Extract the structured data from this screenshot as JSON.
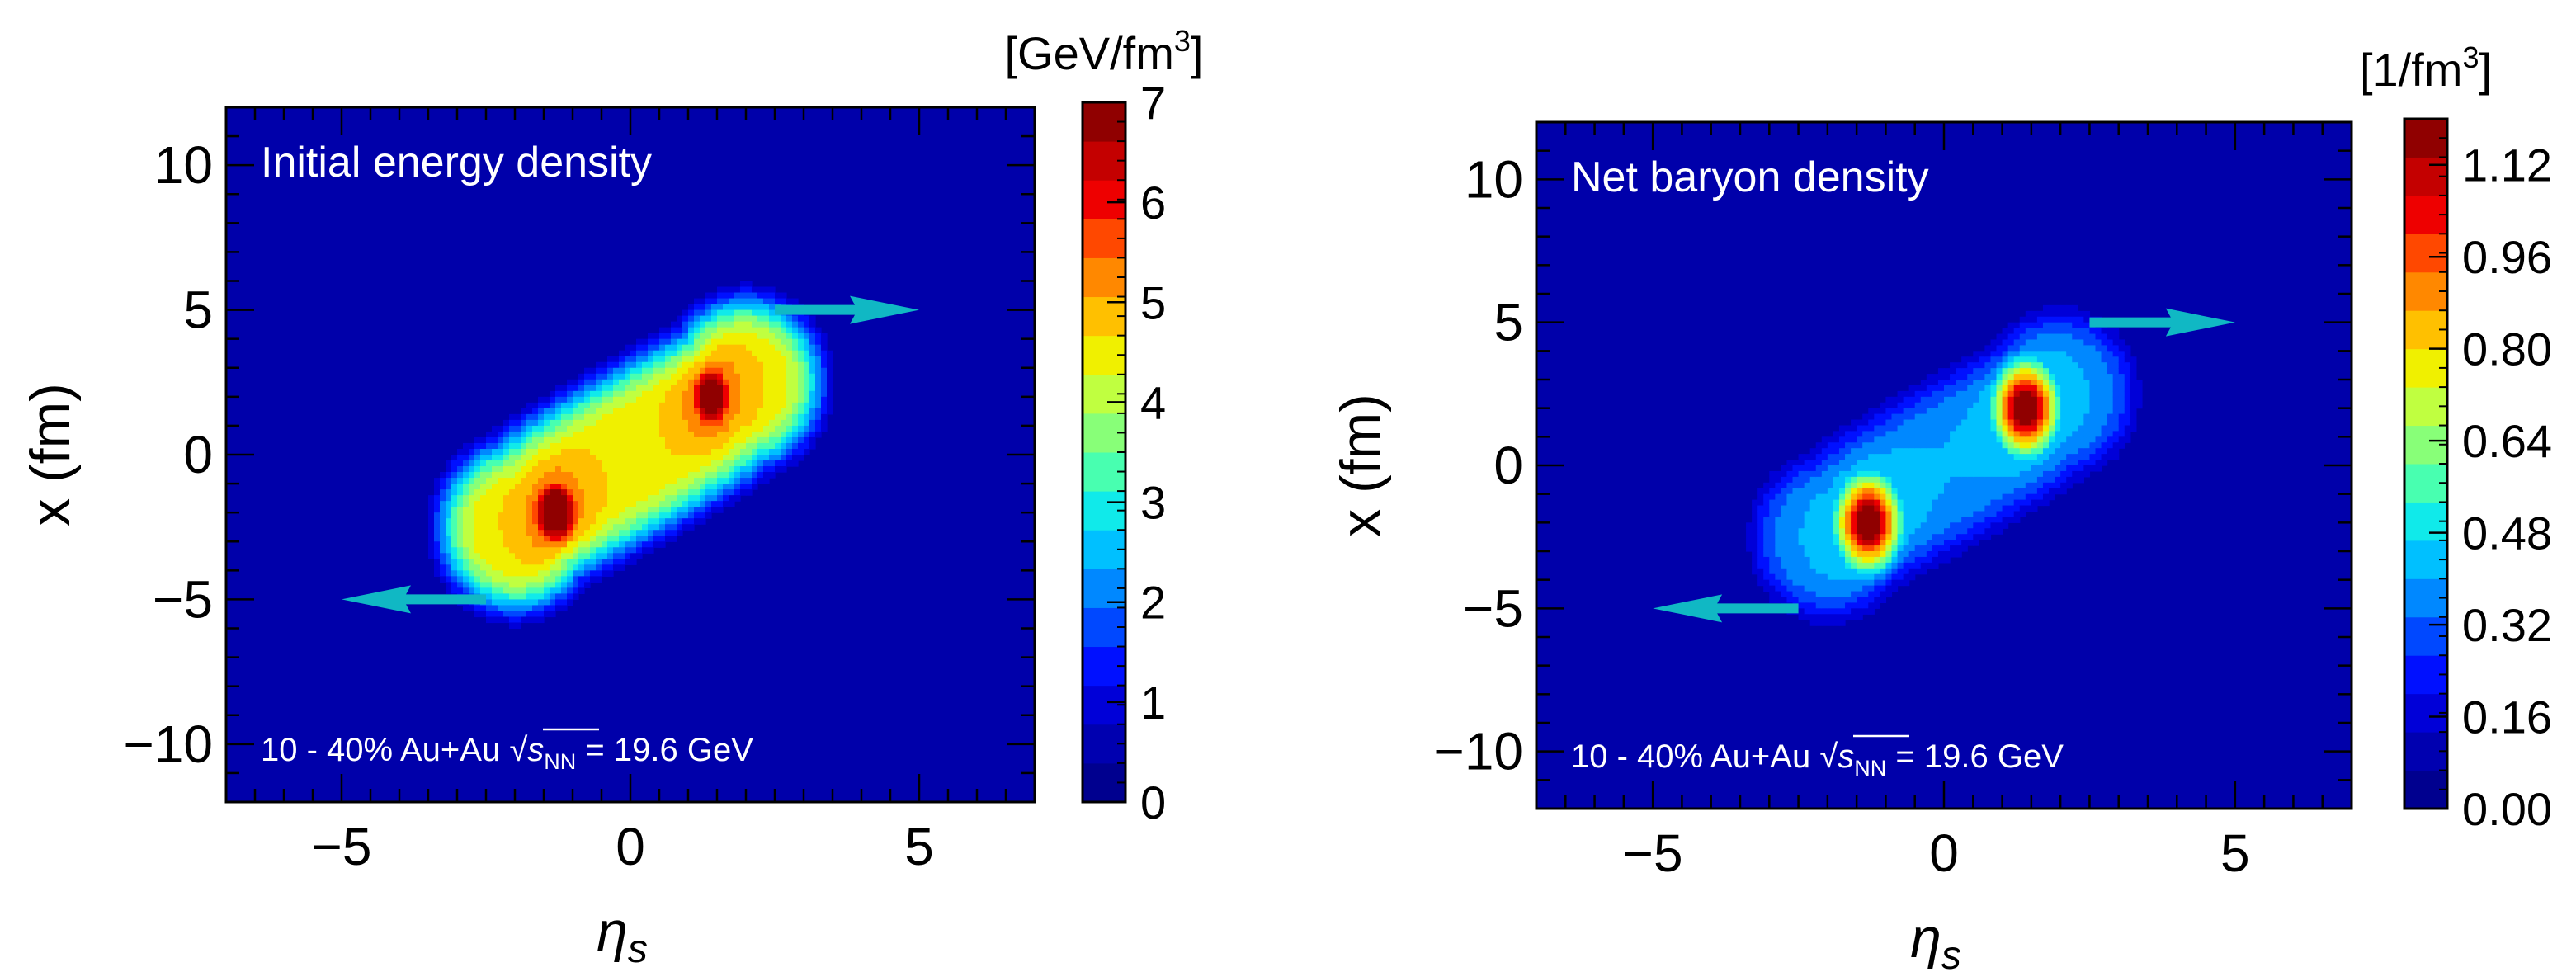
{
  "colors": {
    "background": "#0000aa",
    "arrow": "#10b8c4",
    "frame": "#000000",
    "annotation_text": "#ffffff",
    "colormap": [
      "#00008f",
      "#0000b0",
      "#0000d8",
      "#0010ff",
      "#0048ff",
      "#0088ff",
      "#00c0ff",
      "#10eaea",
      "#48ffb0",
      "#88ff78",
      "#c0ff40",
      "#f0f000",
      "#ffc000",
      "#ff8800",
      "#ff4800",
      "#ee0000",
      "#c40000",
      "#900000"
    ]
  },
  "chart_data": [
    {
      "type": "heatmap",
      "title": "Initial energy density",
      "annotation": {
        "prefix": "10 - 40% Au+Au",
        "sqrt": "√",
        "s": "s",
        "sub": "NN",
        "suffix": "= 19.6 GeV"
      },
      "xlabel": "η",
      "xlabel_sub": "s",
      "ylabel": "x (fm)",
      "xlim": [
        -7,
        7
      ],
      "ylim": [
        -12,
        12
      ],
      "xticks": [
        -5,
        0,
        5
      ],
      "xtick_labels": [
        "−5",
        "0",
        "5"
      ],
      "yticks": [
        10,
        5,
        0,
        -5,
        -10
      ],
      "ytick_labels": [
        "10",
        "5",
        "0",
        "−5",
        "−10"
      ],
      "colorbar": {
        "label_prefix": "[GeV/fm",
        "label_sup": "3",
        "label_suffix": "]",
        "range": [
          0,
          7
        ],
        "ticks": [
          0,
          1,
          2,
          3,
          4,
          5,
          6,
          7
        ],
        "tick_labels": [
          "0",
          "1",
          "2",
          "3",
          "4",
          "5",
          "6",
          "7"
        ]
      },
      "field": {
        "peaks": [
          {
            "eta": -1.3,
            "x": -2.0,
            "value": 7.0
          },
          {
            "eta": 1.4,
            "x": 2.0,
            "value": 6.6
          }
        ],
        "central_value": 4.6
      },
      "arrows": [
        {
          "from_eta": 2.5,
          "to_eta": 5.0,
          "x": 5.0,
          "direction": "right"
        },
        {
          "from_eta": -2.5,
          "to_eta": -5.0,
          "x": -5.0,
          "direction": "left"
        }
      ]
    },
    {
      "type": "heatmap",
      "title": "Net baryon density",
      "annotation": {
        "prefix": "10 - 40% Au+Au",
        "sqrt": "√",
        "s": "s",
        "sub": "NN",
        "suffix": "= 19.6 GeV"
      },
      "xlabel": "η",
      "xlabel_sub": "s",
      "ylabel": "x (fm)",
      "xlim": [
        -7,
        7
      ],
      "ylim": [
        -12,
        12
      ],
      "xticks": [
        -5,
        0,
        5
      ],
      "xtick_labels": [
        "−5",
        "0",
        "5"
      ],
      "yticks": [
        10,
        5,
        0,
        -5,
        -10
      ],
      "ytick_labels": [
        "10",
        "5",
        "0",
        "−5",
        "−10"
      ],
      "colorbar": {
        "label_prefix": "[1/fm",
        "label_sup": "3",
        "label_suffix": "]",
        "range": [
          0,
          1.2
        ],
        "ticks": [
          0,
          0.16,
          0.32,
          0.48,
          0.64,
          0.8,
          0.96,
          1.12
        ],
        "tick_labels": [
          "0.00",
          "0.16",
          "0.32",
          "0.48",
          "0.64",
          "0.80",
          "0.96",
          "1.12"
        ]
      },
      "field": {
        "peaks": [
          {
            "eta": -1.3,
            "x": -2.0,
            "value": 1.2
          },
          {
            "eta": 1.4,
            "x": 2.0,
            "value": 1.18
          }
        ],
        "central_value": 0.4
      },
      "arrows": [
        {
          "from_eta": 2.5,
          "to_eta": 5.0,
          "x": 5.0,
          "direction": "right"
        },
        {
          "from_eta": -2.5,
          "to_eta": -5.0,
          "x": -5.0,
          "direction": "left"
        }
      ]
    }
  ]
}
